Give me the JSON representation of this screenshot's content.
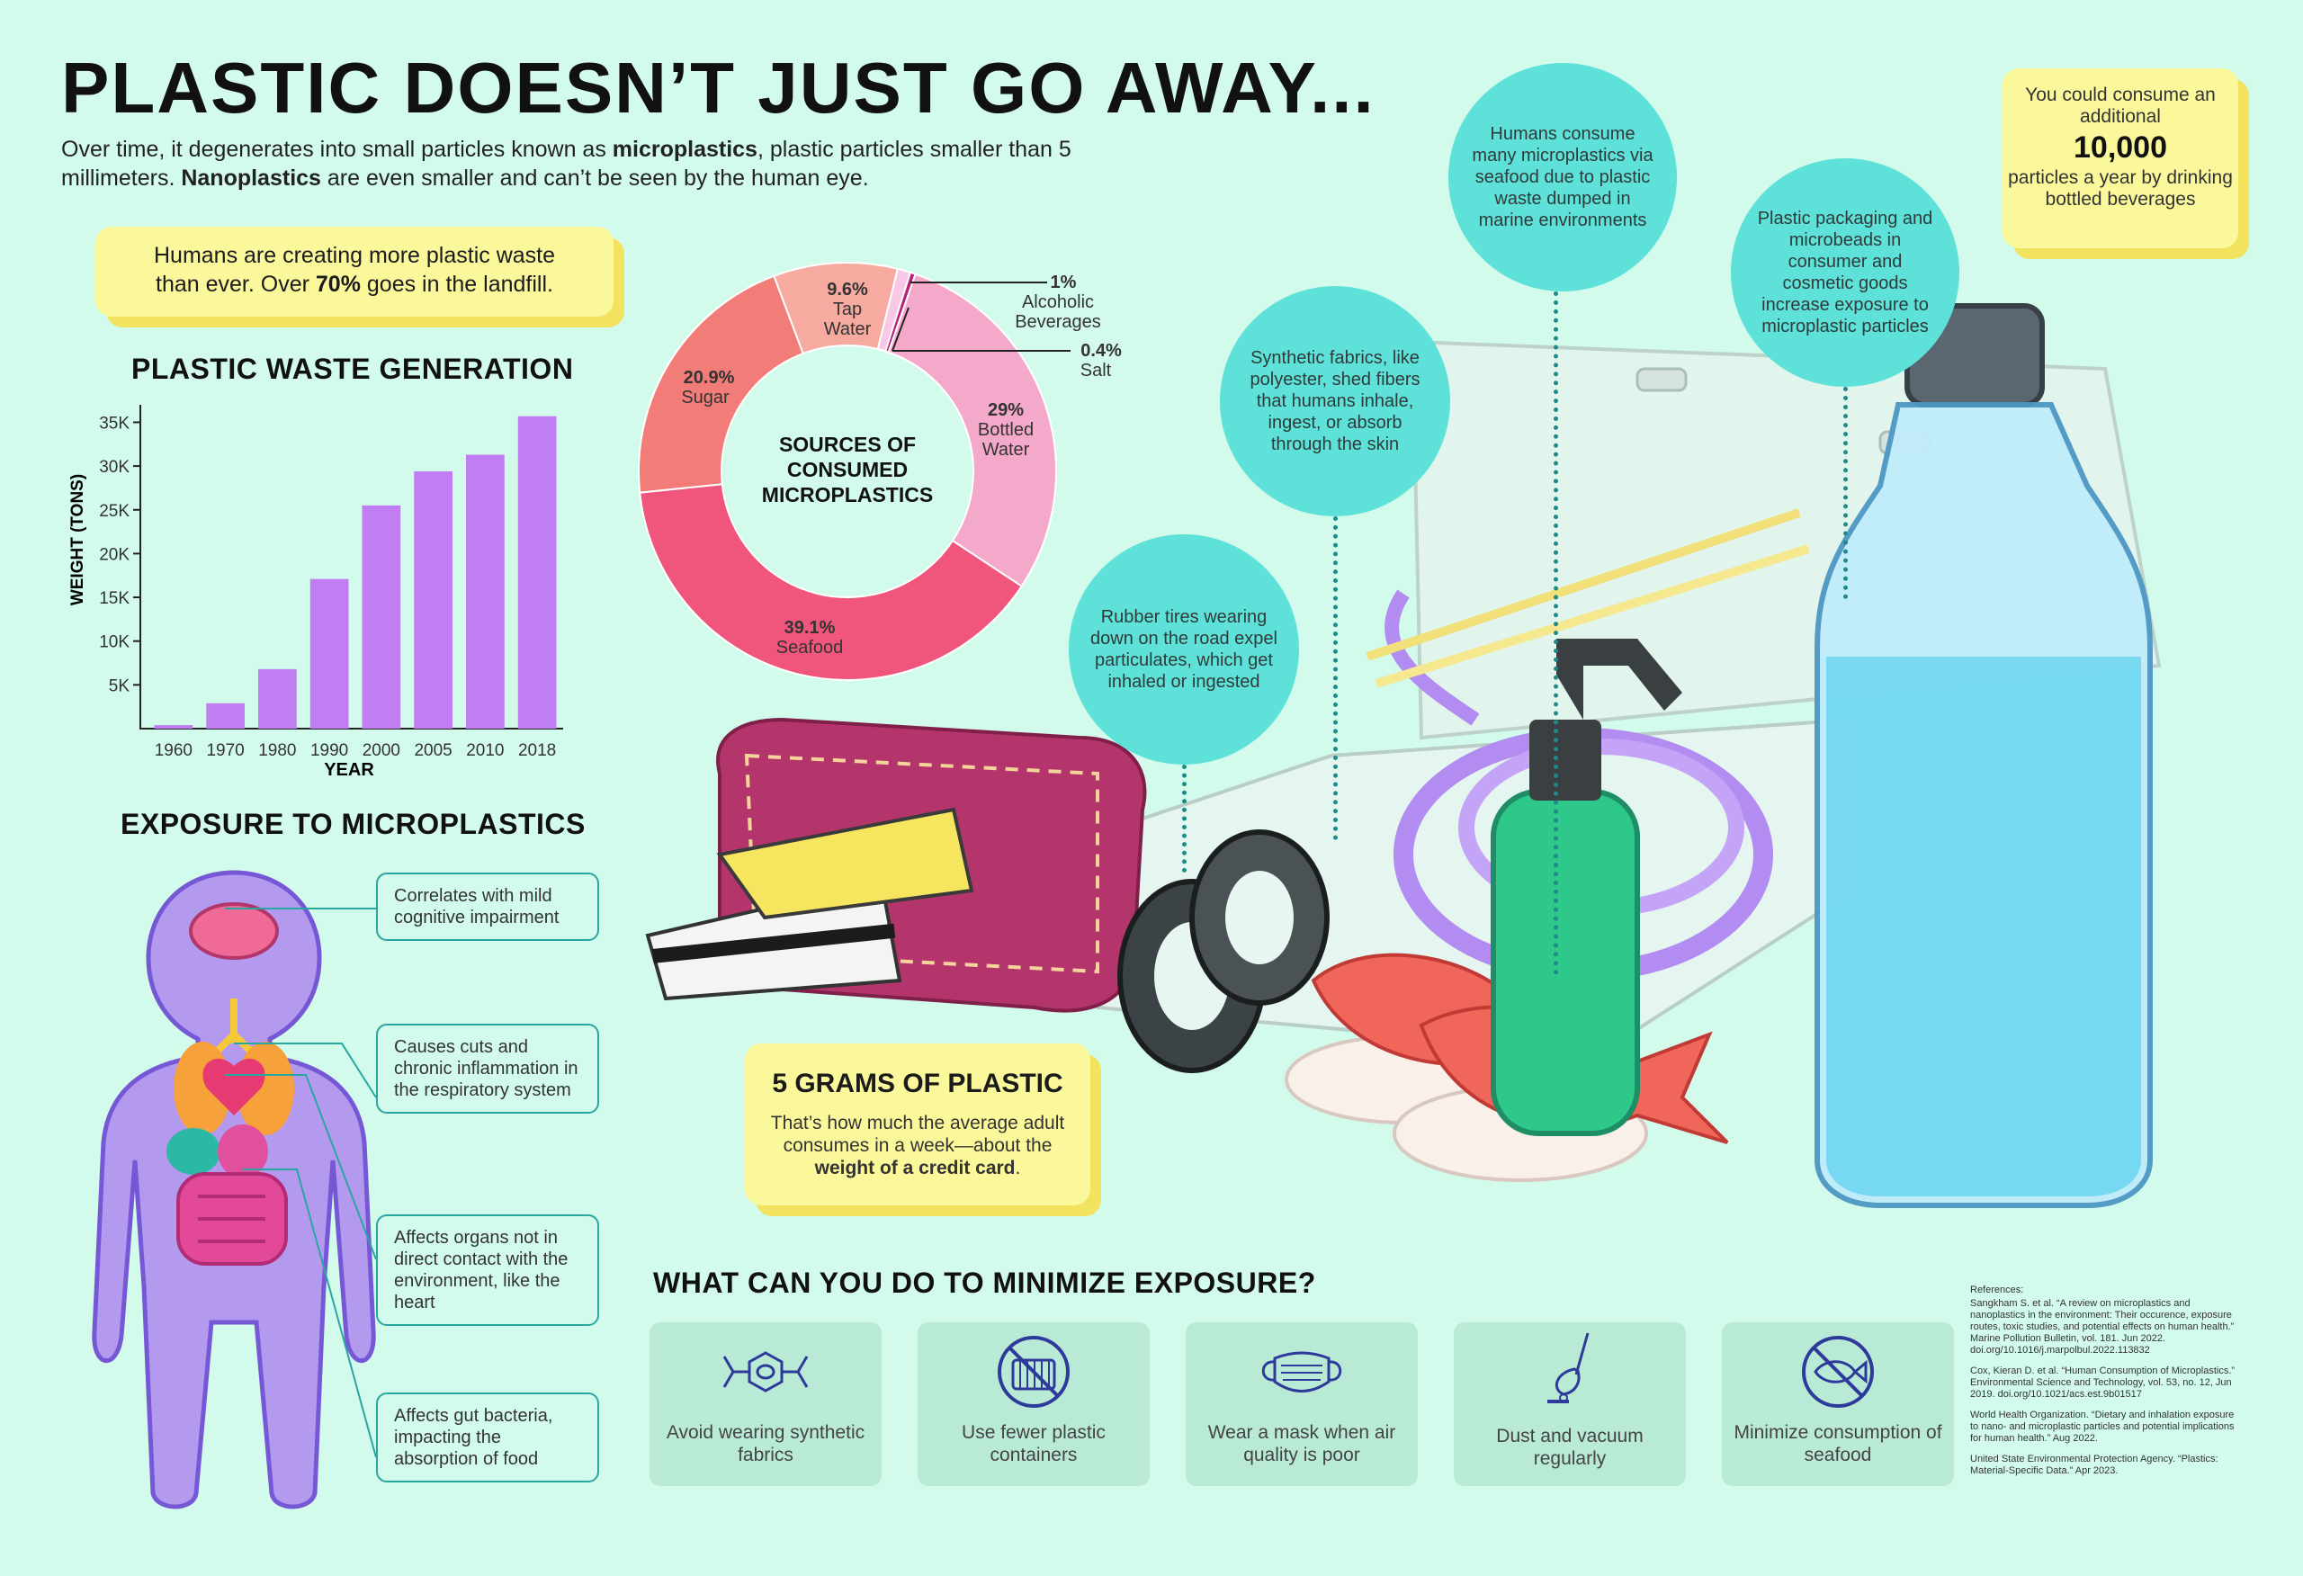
{
  "header": {
    "title": "PLASTIC DOESN’T JUST GO AWAY...",
    "intro_1": "Over time, it degenerates into small particles known as ",
    "intro_bold_1": "microplastics",
    "intro_2": ", plastic particles smaller than 5 millimeters. ",
    "intro_bold_2": "Nanoplastics",
    "intro_3": " are even smaller and can’t be seen by the human eye."
  },
  "waste_callout": {
    "line1": "Humans are creating more plastic waste",
    "line2_pre": "than ever. Over ",
    "line2_bold": "70%",
    "line2_post": " goes in the landfill."
  },
  "chart_data": [
    {
      "type": "bar",
      "title": "PLASTIC WASTE GENERATION",
      "xlabel": "YEAR",
      "ylabel": "WEIGHT (TONS)",
      "categories": [
        "1960",
        "1970",
        "1980",
        "1990",
        "2000",
        "2005",
        "2010",
        "2018"
      ],
      "values": [
        400,
        2900,
        6800,
        17100,
        25500,
        29400,
        31300,
        35700
      ],
      "y_ticks": [
        "5K",
        "10K",
        "15K",
        "20K",
        "25K",
        "30K",
        "35K"
      ],
      "ylim": [
        0,
        37000
      ],
      "grid": false,
      "color": "#c07ef2"
    },
    {
      "type": "pie",
      "title": "SOURCES OF CONSUMED MICROPLASTICS",
      "slices": [
        {
          "label": "Bottled Water",
          "pct": "29%",
          "value": 29,
          "color": "#f4a9cb"
        },
        {
          "label": "Seafood",
          "pct": "39.1%",
          "value": 39.1,
          "color": "#f0567c"
        },
        {
          "label": "Sugar",
          "pct": "20.9%",
          "value": 20.9,
          "color": "#f27c78"
        },
        {
          "label": "Tap Water",
          "pct": "9.6%",
          "value": 9.6,
          "color": "#f6aaa0"
        },
        {
          "label": "Alcoholic Beverages",
          "pct": "1%",
          "value": 1,
          "color": "#f8c8e6"
        },
        {
          "label": "Salt",
          "pct": "0.4%",
          "value": 0.4,
          "color": "#b8207a"
        }
      ]
    }
  ],
  "donut_labels": {
    "center": [
      "SOURCES OF",
      "CONSUMED",
      "MICROPLASTICS"
    ],
    "tap_pct": "9.6%",
    "tap_1": "Tap",
    "tap_2": "Water",
    "sugar_pct": "20.9%",
    "sugar": "Sugar",
    "seafood_pct": "39.1%",
    "seafood": "Seafood",
    "bottled_pct": "29%",
    "bottled_1": "Bottled",
    "bottled_2": "Water",
    "alc_pct": "1%",
    "alc_1": "Alcoholic",
    "alc_2": "Beverages",
    "salt_pct": "0.4%",
    "salt": "Salt"
  },
  "bubbles": {
    "seafood": "Humans consume many microplastics via seafood due to plastic waste dumped in marine environments",
    "fabrics": "Synthetic fabrics, like polyester, shed fibers that humans inhale, ingest, or absorb through the skin",
    "packaging": "Plastic packaging and microbeads in consumer and cosmetic goods increase exposure to microplastic particles",
    "tires": "Rubber tires wearing down on the road expel particulates, which get inhaled or ingested"
  },
  "bottle_callout": {
    "line1": "You could consume an additional",
    "big": "10,000",
    "line2": "particles a year by drinking bottled beverages"
  },
  "grams_callout": {
    "title": "5 GRAMS OF PLASTIC",
    "body": "That’s how much the average adult consumes in a week—about the ",
    "body_bold": "weight of a credit card",
    "body_end": "."
  },
  "exposure": {
    "title": "EXPOSURE TO MICROPLASTICS",
    "items": [
      "Correlates with mild cognitive impairment",
      "Causes cuts and chronic inflammation in the respiratory system",
      "Affects organs not in direct contact with the environment, like the heart",
      "Affects gut bacteria, impacting the absorption of food"
    ]
  },
  "minimize": {
    "title": "WHAT CAN YOU DO TO MINIMIZE EXPOSURE?",
    "items": [
      {
        "label": "Avoid wearing synthetic fabrics",
        "icon": "molecule-icon"
      },
      {
        "label": "Use fewer plastic containers",
        "icon": "no-container-icon"
      },
      {
        "label": "Wear a mask when air quality is poor",
        "icon": "mask-icon"
      },
      {
        "label": "Dust and vacuum regularly",
        "icon": "vacuum-icon"
      },
      {
        "label": "Minimize consumption of seafood",
        "icon": "no-fish-icon"
      }
    ]
  },
  "references": {
    "heading": "References:",
    "items": [
      "Sangkham S. et al. “A review on microplastics and nanoplastics in the environment: Their occurence, exposure routes, toxic studies, and potential effects on human health.” Marine Pollution Bulletin, vol. 181. Jun 2022. doi.org/10.1016/j.marpolbul.2022.113832",
      "Cox, Kieran D. et al. “Human Consumption of Microplastics.” Environmental Science and Technology, vol. 53, no. 12, Jun 2019. doi.org/10.1021/acs.est.9b01517",
      "World Health Organization. “Dietary and inhalation exposure to nano- and microplastic particles and potential implications for human health.” Aug 2022.",
      "United State Environmental Protection Agency. “Plastics: Material-Specific Data.” Apr 2023."
    ]
  }
}
